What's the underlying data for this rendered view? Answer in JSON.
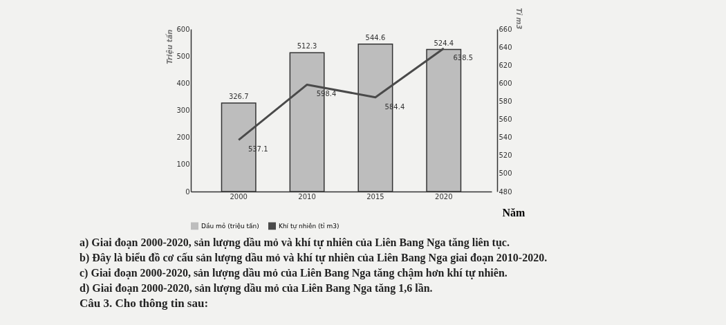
{
  "chart_data": {
    "type": "bar",
    "categories": [
      "2000",
      "2010",
      "2015",
      "2020"
    ],
    "xlabel": "Năm",
    "ylabel": "Triệu tấn",
    "y2label": "Tỉ m3",
    "series": [
      {
        "name": "Dầu mỏ (triệu tấn)",
        "type": "bar",
        "color": "#bdbdbd",
        "values": [
          326.7,
          512.3,
          544.6,
          524.4
        ]
      },
      {
        "name": "Khí tự nhiên (tỉ m3)",
        "type": "line",
        "axis": "y2",
        "color": "#4a4a4a",
        "values": [
          537.1,
          598.4,
          584.4,
          638.5
        ]
      }
    ],
    "ylim": [
      0,
      600
    ],
    "yticks": [
      0,
      100,
      200,
      300,
      400,
      500,
      600
    ],
    "y2lim": [
      480,
      660
    ],
    "y2ticks": [
      480,
      500,
      520,
      540,
      560,
      580,
      600,
      620,
      640,
      660
    ],
    "data_labels": true,
    "grid": false,
    "legend": "bottom",
    "marker": "none",
    "annotations": [
      "a) Giai đoạn 2000-2020, sản lượng dầu mỏ và khí tự nhiên của Liên Bang Nga tăng liên tục.",
      "b) Đây là biểu đồ cơ cấu sản lượng dầu mỏ và khí tự nhiên của Liên Bang Nga giai đoạn 2010-2020.",
      "c) Giai đoạn 2000-2020, sản lượng dầu mỏ của Liên Bang Nga tăng chậm hơn khí tự nhiên.",
      "d) Giai đoạn 2000-2020, sản lượng dầu mỏ của Liên Bang Nga tăng 1,6 lần.",
      "Câu 3. Cho thông tin sau:"
    ]
  }
}
